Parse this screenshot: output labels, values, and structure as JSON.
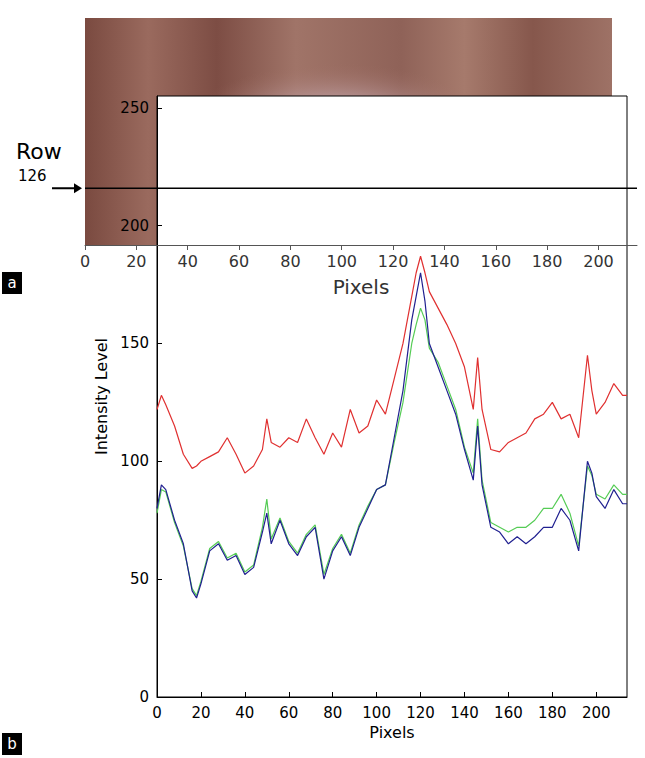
{
  "chart_data": [
    {
      "type": "image",
      "panel_label": "a",
      "annotation": "Row",
      "row_label": "126",
      "xlabel": "Pixels",
      "xlim": [
        0,
        215
      ],
      "xticks": [
        0,
        20,
        40,
        60,
        80,
        100,
        120,
        140,
        160,
        180,
        200
      ]
    },
    {
      "type": "line",
      "panel_label": "b",
      "xlabel": "Pixels",
      "ylabel": "Intensity Level",
      "xlim": [
        0,
        214
      ],
      "ylim": [
        0,
        255
      ],
      "xticks": [
        0,
        20,
        40,
        60,
        80,
        100,
        120,
        140,
        160,
        180,
        200
      ],
      "yticks": [
        0,
        50,
        100,
        150,
        200,
        250
      ],
      "grid": false,
      "x": [
        0,
        2,
        4,
        8,
        12,
        16,
        18,
        20,
        24,
        28,
        32,
        36,
        40,
        44,
        48,
        50,
        52,
        56,
        60,
        64,
        68,
        72,
        76,
        80,
        84,
        88,
        92,
        96,
        100,
        104,
        108,
        112,
        116,
        118,
        120,
        122,
        124,
        128,
        132,
        136,
        140,
        144,
        146,
        148,
        152,
        156,
        160,
        164,
        168,
        172,
        176,
        180,
        184,
        188,
        192,
        196,
        198,
        200,
        204,
        208,
        212,
        214
      ],
      "series": [
        {
          "color": "#e03030",
          "values": [
            122,
            128,
            124,
            115,
            103,
            97,
            98,
            100,
            102,
            104,
            110,
            103,
            95,
            98,
            105,
            118,
            108,
            106,
            110,
            108,
            118,
            110,
            103,
            112,
            106,
            122,
            112,
            115,
            126,
            120,
            135,
            150,
            170,
            180,
            187,
            180,
            172,
            165,
            158,
            150,
            140,
            122,
            144,
            122,
            105,
            104,
            108,
            110,
            112,
            118,
            120,
            125,
            118,
            120,
            110,
            145,
            130,
            120,
            125,
            133,
            128,
            128
          ]
        },
        {
          "color": "#55cc55",
          "values": [
            78,
            88,
            87,
            74,
            64,
            46,
            43,
            49,
            63,
            66,
            59,
            61,
            53,
            56,
            72,
            84,
            67,
            76,
            66,
            61,
            69,
            73,
            52,
            63,
            69,
            61,
            73,
            81,
            88,
            90,
            108,
            125,
            150,
            158,
            165,
            160,
            148,
            142,
            132,
            122,
            106,
            95,
            118,
            92,
            74,
            72,
            70,
            72,
            72,
            75,
            80,
            80,
            86,
            78,
            64,
            98,
            94,
            86,
            84,
            90,
            86,
            86
          ]
        },
        {
          "color": "#202090",
          "values": [
            80,
            90,
            88,
            75,
            65,
            45,
            42,
            48,
            62,
            65,
            58,
            60,
            52,
            55,
            70,
            78,
            65,
            75,
            65,
            60,
            68,
            72,
            50,
            62,
            68,
            60,
            72,
            80,
            88,
            90,
            110,
            130,
            160,
            170,
            180,
            168,
            150,
            140,
            130,
            120,
            105,
            92,
            115,
            90,
            72,
            70,
            65,
            68,
            65,
            68,
            72,
            72,
            80,
            75,
            62,
            100,
            95,
            85,
            80,
            88,
            82,
            82
          ]
        }
      ]
    }
  ]
}
